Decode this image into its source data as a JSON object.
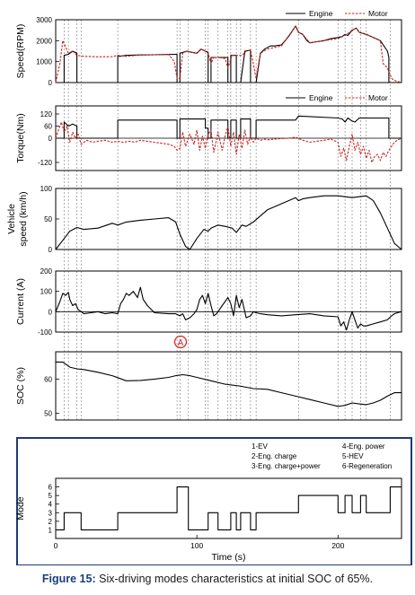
{
  "caption": {
    "label": "Figure 15:",
    "text": "Six-driving modes characteristics at initial SOC of 65%."
  },
  "annotation_marker": "A",
  "colors": {
    "engine": "#000000",
    "motor": "#cc2222",
    "frame": "#1f3b73",
    "vline": "#8a8a8a"
  },
  "chart_data": [
    {
      "type": "line",
      "ylabel": "Speed(RPM)",
      "ylim": [
        0,
        3000
      ],
      "yticks": [
        0,
        1000,
        2000,
        3000
      ],
      "xlim": [
        0,
        245
      ],
      "legend": [
        "Engine",
        "Motor"
      ],
      "legend_position": "top-right",
      "series": [
        {
          "name": "Engine",
          "style": "solid",
          "x": [
            0,
            6,
            6,
            9,
            12,
            15,
            15,
            44,
            44,
            45,
            50,
            60,
            70,
            80,
            86,
            86,
            88,
            88,
            93,
            96,
            100,
            103,
            106,
            108,
            108,
            110,
            110,
            122,
            122,
            124,
            124,
            128,
            128,
            131,
            134,
            138,
            138,
            142,
            145,
            148,
            152,
            155,
            160,
            165,
            170,
            172,
            175,
            178,
            180,
            185,
            190,
            195,
            200,
            203,
            205,
            207,
            210,
            213,
            215,
            220,
            225,
            230,
            235,
            236,
            236,
            245
          ],
          "y": [
            0,
            0,
            1300,
            1350,
            1500,
            1400,
            0,
            0,
            1300,
            1250,
            1300,
            1320,
            1330,
            1340,
            1350,
            0,
            0,
            1400,
            1500,
            1450,
            1400,
            1600,
            1500,
            1450,
            0,
            0,
            1200,
            1200,
            0,
            0,
            1300,
            1300,
            0,
            0,
            1500,
            1550,
            0,
            0,
            1400,
            1600,
            1750,
            1750,
            1800,
            2200,
            2700,
            2400,
            2300,
            2000,
            1900,
            1950,
            2000,
            2100,
            2150,
            2200,
            2300,
            2250,
            2500,
            2600,
            2400,
            2300,
            2150,
            2000,
            1500,
            1200,
            0,
            0
          ]
        },
        {
          "name": "Motor",
          "style": "dashed",
          "x": [
            0,
            3,
            5,
            7,
            9,
            12,
            15,
            20,
            30,
            40,
            44,
            50,
            60,
            70,
            80,
            84,
            86,
            88,
            90,
            93,
            96,
            100,
            103,
            106,
            108,
            110,
            112,
            115,
            120,
            122,
            125,
            128,
            132,
            135,
            138,
            140,
            142,
            145,
            150,
            160,
            170,
            172,
            175,
            180,
            190,
            200,
            205,
            210,
            213,
            215,
            220,
            225,
            230,
            232,
            235,
            238,
            240,
            245
          ],
          "y": [
            0,
            900,
            2000,
            1700,
            1400,
            1500,
            1300,
            1250,
            1230,
            1240,
            1300,
            1250,
            1320,
            1330,
            1340,
            1000,
            200,
            200,
            1400,
            1500,
            1450,
            1400,
            1600,
            1500,
            1400,
            900,
            1200,
            1200,
            1150,
            700,
            1300,
            1300,
            1300,
            1500,
            1550,
            900,
            200,
            1400,
            1600,
            1750,
            2700,
            2400,
            2300,
            1900,
            2000,
            2100,
            2250,
            2500,
            2600,
            2400,
            2300,
            2150,
            2000,
            900,
            700,
            200,
            100,
            0
          ]
        }
      ]
    },
    {
      "type": "line",
      "ylabel": "Torque(Nm)",
      "ylim": [
        -160,
        160
      ],
      "yticks": [
        -120,
        0,
        60,
        120
      ],
      "xlim": [
        0,
        245
      ],
      "legend": [
        "Engine",
        "Motor"
      ],
      "legend_position": "top-right",
      "series": [
        {
          "name": "Engine",
          "style": "solid",
          "x": [
            0,
            6,
            6,
            9,
            12,
            15,
            15,
            44,
            44,
            86,
            86,
            88,
            88,
            106,
            106,
            108,
            108,
            110,
            110,
            122,
            122,
            124,
            124,
            128,
            128,
            131,
            131,
            138,
            138,
            142,
            142,
            170,
            172,
            200,
            203,
            205,
            207,
            210,
            212,
            215,
            236,
            236,
            245
          ],
          "y": [
            0,
            0,
            80,
            60,
            70,
            60,
            0,
            0,
            90,
            90,
            0,
            0,
            95,
            95,
            50,
            50,
            0,
            0,
            90,
            90,
            0,
            0,
            90,
            90,
            0,
            0,
            95,
            95,
            0,
            0,
            90,
            90,
            110,
            100,
            95,
            80,
            100,
            85,
            80,
            100,
            100,
            0,
            0
          ]
        },
        {
          "name": "Motor",
          "style": "dashed",
          "x": [
            0,
            2,
            4,
            6,
            8,
            10,
            12,
            14,
            16,
            18,
            22,
            26,
            30,
            35,
            40,
            44,
            48,
            52,
            56,
            60,
            65,
            70,
            75,
            80,
            84,
            86,
            88,
            90,
            92,
            95,
            98,
            100,
            102,
            104,
            106,
            108,
            110,
            112,
            115,
            118,
            120,
            122,
            124,
            126,
            128,
            130,
            132,
            134,
            136,
            138,
            140,
            142,
            145,
            148,
            150,
            155,
            160,
            165,
            170,
            175,
            180,
            185,
            190,
            195,
            200,
            202,
            204,
            206,
            208,
            210,
            212,
            214,
            216,
            218,
            220,
            222,
            224,
            226,
            228,
            230,
            232,
            234,
            236,
            238,
            240,
            242,
            245
          ],
          "y": [
            0,
            40,
            80,
            30,
            60,
            -20,
            30,
            0,
            20,
            -30,
            -10,
            -20,
            -15,
            -10,
            -20,
            -15,
            -20,
            -15,
            -20,
            -10,
            -15,
            -20,
            -25,
            -30,
            -40,
            -60,
            -50,
            30,
            -40,
            20,
            -30,
            40,
            -60,
            10,
            -50,
            20,
            40,
            -70,
            30,
            -60,
            10,
            60,
            -40,
            30,
            -80,
            20,
            -50,
            40,
            -30,
            10,
            -20,
            0,
            -10,
            -5,
            -8,
            -5,
            -2,
            0,
            5,
            -10,
            -20,
            -15,
            -10,
            -5,
            -20,
            -90,
            -50,
            -110,
            -40,
            20,
            -60,
            -20,
            -80,
            -40,
            -100,
            -60,
            -120,
            -90,
            -80,
            -110,
            -70,
            -90,
            -60,
            -40,
            -20,
            -10,
            0
          ]
        }
      ]
    },
    {
      "type": "line",
      "ylabel": "Vehicle speed (km/h)",
      "ylim": [
        0,
        100
      ],
      "yticks": [
        0,
        50,
        100
      ],
      "xlim": [
        0,
        245
      ],
      "series": [
        {
          "name": "",
          "style": "solid",
          "x": [
            0,
            5,
            10,
            15,
            20,
            30,
            40,
            44,
            50,
            60,
            70,
            80,
            85,
            88,
            92,
            95,
            100,
            105,
            108,
            110,
            115,
            120,
            125,
            128,
            132,
            135,
            140,
            145,
            150,
            160,
            170,
            172,
            175,
            180,
            190,
            200,
            210,
            220,
            225,
            230,
            235,
            240,
            245
          ],
          "y": [
            0,
            15,
            30,
            36,
            33,
            35,
            43,
            40,
            45,
            48,
            50,
            52,
            45,
            25,
            5,
            0,
            18,
            33,
            30,
            35,
            40,
            38,
            35,
            28,
            40,
            38,
            45,
            55,
            65,
            75,
            85,
            80,
            83,
            85,
            88,
            88,
            85,
            88,
            80,
            60,
            35,
            10,
            0
          ]
        }
      ]
    },
    {
      "type": "line",
      "ylabel": "Current (A)",
      "ylim": [
        -100,
        200
      ],
      "yticks": [
        -100,
        0,
        100,
        200
      ],
      "xlim": [
        0,
        245
      ],
      "series": [
        {
          "name": "",
          "style": "solid",
          "x": [
            0,
            3,
            5,
            7,
            9,
            10,
            12,
            14,
            16,
            18,
            20,
            25,
            30,
            35,
            40,
            44,
            46,
            48,
            50,
            52,
            55,
            58,
            60,
            62,
            65,
            70,
            80,
            85,
            88,
            90,
            92,
            95,
            98,
            100,
            102,
            104,
            106,
            108,
            110,
            112,
            114,
            118,
            120,
            122,
            124,
            126,
            128,
            130,
            132,
            135,
            138,
            140,
            142,
            145,
            150,
            160,
            170,
            180,
            190,
            200,
            202,
            204,
            206,
            208,
            210,
            212,
            214,
            216,
            218,
            220,
            225,
            230,
            235,
            238,
            240,
            242,
            245
          ],
          "y": [
            0,
            50,
            90,
            80,
            95,
            60,
            30,
            40,
            10,
            0,
            -10,
            -5,
            0,
            -10,
            -5,
            -10,
            40,
            60,
            90,
            80,
            100,
            70,
            120,
            60,
            30,
            -5,
            -10,
            -10,
            -20,
            -10,
            -40,
            -30,
            -10,
            10,
            60,
            80,
            40,
            90,
            30,
            -20,
            -10,
            30,
            50,
            70,
            40,
            -20,
            80,
            20,
            60,
            -30,
            -20,
            0,
            -5,
            -10,
            -15,
            -20,
            -15,
            -10,
            -20,
            -25,
            -70,
            -50,
            -90,
            -40,
            0,
            -40,
            -80,
            -60,
            -70,
            -70,
            -60,
            -50,
            -40,
            -20,
            -10,
            -5,
            0
          ]
        }
      ]
    },
    {
      "type": "line",
      "ylabel": "SOC (%)",
      "ylim": [
        48,
        68
      ],
      "yticks": [
        50,
        60
      ],
      "xlim": [
        0,
        245
      ],
      "series": [
        {
          "name": "",
          "style": "solid",
          "x": [
            0,
            5,
            10,
            15,
            20,
            30,
            40,
            50,
            60,
            70,
            80,
            85,
            90,
            95,
            100,
            110,
            120,
            130,
            140,
            150,
            160,
            170,
            180,
            190,
            195,
            200,
            205,
            210,
            215,
            220,
            225,
            230,
            235,
            240,
            245
          ],
          "y": [
            65,
            65,
            63.5,
            63,
            62.8,
            62,
            61,
            59.5,
            59.6,
            60,
            60.5,
            61,
            61.3,
            61,
            60.5,
            59.5,
            58.5,
            58,
            57.2,
            57,
            56,
            55,
            54,
            53,
            52.5,
            52,
            52.3,
            53,
            52.7,
            52.5,
            53,
            53.8,
            55,
            56,
            56
          ]
        }
      ]
    },
    {
      "type": "line",
      "ylabel": "Mode",
      "xlabel": "Time (s)",
      "ylim": [
        0,
        7
      ],
      "yticks": [
        1,
        2,
        3,
        4,
        5,
        6
      ],
      "xlim": [
        0,
        245
      ],
      "xticks": [
        0,
        100,
        200
      ],
      "legend": [
        "1-EV",
        "2-Eng. charge",
        "3-Eng. charge+power",
        "4-Eng. power",
        "5-HEV",
        "6-Regeneration"
      ],
      "legend_position": "top-right",
      "series": [
        {
          "name": "",
          "style": "solid",
          "x": [
            0,
            6,
            6,
            18,
            18,
            44,
            44,
            86,
            86,
            94,
            94,
            108,
            108,
            115,
            115,
            124,
            124,
            128,
            128,
            131,
            131,
            138,
            138,
            142,
            142,
            172,
            172,
            200,
            200,
            205,
            205,
            210,
            210,
            216,
            216,
            220,
            220,
            237,
            237,
            245
          ],
          "y": [
            1,
            1,
            3,
            3,
            1,
            1,
            3,
            3,
            6,
            6,
            1,
            1,
            3,
            3,
            1,
            1,
            3,
            3,
            1,
            1,
            3,
            3,
            1,
            1,
            3,
            3,
            5,
            5,
            3,
            3,
            5,
            5,
            3,
            3,
            5,
            5,
            3,
            3,
            6,
            6
          ]
        }
      ]
    }
  ]
}
